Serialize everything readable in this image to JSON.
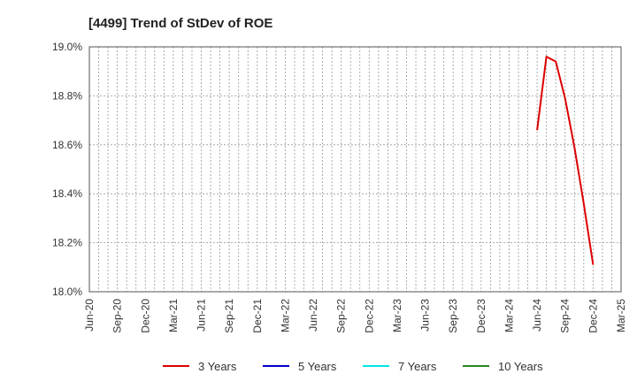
{
  "chart_data": {
    "type": "line",
    "title": "[4499]  Trend of StDev of ROE",
    "xlabel": "",
    "ylabel": "",
    "ylim": [
      18.0,
      19.0
    ],
    "y_ticks": [
      "18.0%",
      "18.2%",
      "18.4%",
      "18.6%",
      "18.8%",
      "19.0%"
    ],
    "y_tick_values": [
      18.0,
      18.2,
      18.4,
      18.6,
      18.8,
      19.0
    ],
    "x_ticks": [
      "Jun-20",
      "Sep-20",
      "Dec-20",
      "Mar-21",
      "Jun-21",
      "Sep-21",
      "Dec-21",
      "Mar-22",
      "Jun-22",
      "Sep-22",
      "Dec-22",
      "Mar-23",
      "Jun-23",
      "Sep-23",
      "Dec-23",
      "Mar-24",
      "Jun-24",
      "Sep-24",
      "Dec-24",
      "Mar-25"
    ],
    "x_months": [
      "Jun-20",
      "Jul-20",
      "Aug-20",
      "Sep-20",
      "Oct-20",
      "Nov-20",
      "Dec-20",
      "Jan-21",
      "Feb-21",
      "Mar-21",
      "Apr-21",
      "May-21",
      "Jun-21",
      "Jul-21",
      "Aug-21",
      "Sep-21",
      "Oct-21",
      "Nov-21",
      "Dec-21",
      "Jan-22",
      "Feb-22",
      "Mar-22",
      "Apr-22",
      "May-22",
      "Jun-22",
      "Jul-22",
      "Aug-22",
      "Sep-22",
      "Oct-22",
      "Nov-22",
      "Dec-22",
      "Jan-23",
      "Feb-23",
      "Mar-23",
      "Apr-23",
      "May-23",
      "Jun-23",
      "Jul-23",
      "Aug-23",
      "Sep-23",
      "Oct-23",
      "Nov-23",
      "Dec-23",
      "Jan-24",
      "Feb-24",
      "Mar-24",
      "Apr-24",
      "May-24",
      "Jun-24",
      "Jul-24",
      "Aug-24",
      "Sep-24",
      "Oct-24",
      "Nov-24",
      "Dec-24",
      "Jan-25",
      "Feb-25",
      "Mar-25"
    ],
    "grid": true,
    "legend_position": "bottom",
    "series": [
      {
        "name": "3 Years",
        "color": "#dd0000",
        "x": [
          "Jun-24",
          "Jul-24",
          "Aug-24",
          "Sep-24",
          "Oct-24",
          "Nov-24",
          "Dec-24"
        ],
        "values": [
          18.66,
          18.96,
          18.94,
          18.79,
          18.59,
          18.36,
          18.11
        ]
      },
      {
        "name": "5 Years",
        "color": "#0000cc",
        "x": [],
        "values": []
      },
      {
        "name": "7 Years",
        "color": "#00e5e5",
        "x": [],
        "values": []
      },
      {
        "name": "10 Years",
        "color": "#228822",
        "x": [],
        "values": []
      }
    ]
  }
}
